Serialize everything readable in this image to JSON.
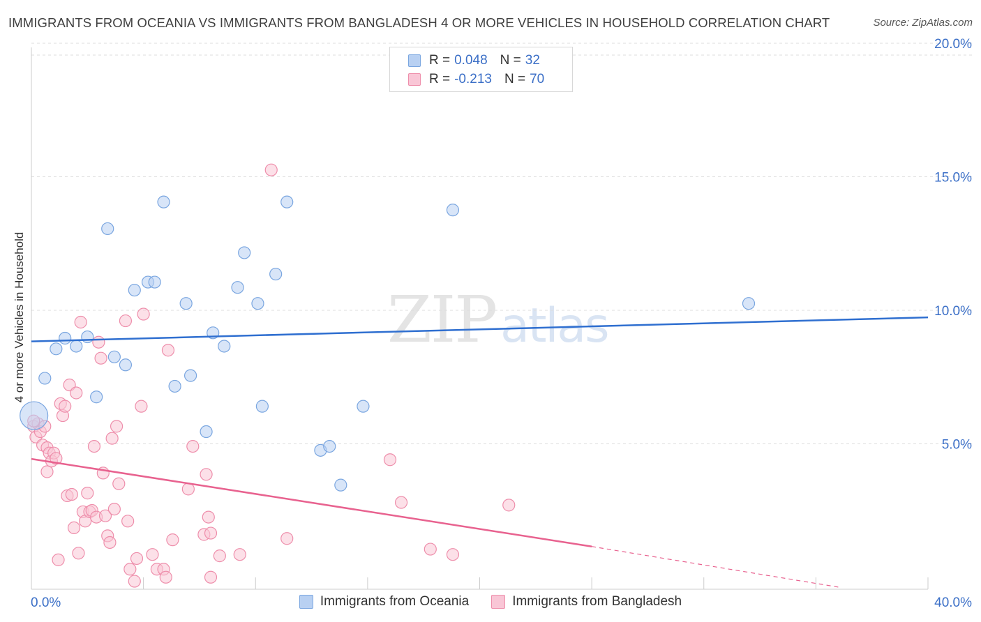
{
  "title": "IMMIGRANTS FROM OCEANIA VS IMMIGRANTS FROM BANGLADESH 4 OR MORE VEHICLES IN HOUSEHOLD CORRELATION CHART",
  "source": "Source: ZipAtlas.com",
  "watermark": {
    "zip": "ZIP",
    "atlas": "atlas"
  },
  "legend_top": [
    {
      "r_label": "R =",
      "r_value": "0.048",
      "n_label": "N =",
      "n_value": "32"
    },
    {
      "r_label": "R =",
      "r_value": "-0.213",
      "n_label": "N =",
      "n_value": "70"
    }
  ],
  "colors": {
    "oceania_fill": "#b8d0f2",
    "oceania_stroke": "#7aa6e0",
    "oceania_line": "#2f6fd0",
    "bangladesh_fill": "#f9c6d6",
    "bangladesh_stroke": "#ee8eab",
    "bangladesh_line": "#e8628f",
    "axis_text": "#3b6fc7",
    "grid": "#dddddd"
  },
  "chart_data": {
    "type": "scatter",
    "title": "IMMIGRANTS FROM OCEANIA VS IMMIGRANTS FROM BANGLADESH 4 OR MORE VEHICLES IN HOUSEHOLD CORRELATION CHART",
    "xlabel": "",
    "ylabel": "4 or more Vehicles in Household",
    "xlim": [
      0,
      40
    ],
    "ylim": [
      0,
      20
    ],
    "x_tick_labels": [
      "0.0%",
      "40.0%"
    ],
    "y_ticks": [
      5,
      10,
      15,
      20
    ],
    "y_tick_labels": [
      "5.0%",
      "10.0%",
      "15.0%",
      "20.0%"
    ],
    "grid": "horizontal dashed",
    "legend_position": "top-center",
    "series": [
      {
        "name": "Immigrants from Oceania",
        "r": 0.048,
        "n": 32,
        "trend": {
          "x": [
            0,
            40
          ],
          "y": [
            9.28,
            10.18
          ]
        },
        "points": [
          [
            0.3,
            6.5
          ],
          [
            0.6,
            7.9
          ],
          [
            1.1,
            9.0
          ],
          [
            1.5,
            9.4
          ],
          [
            2.0,
            9.1
          ],
          [
            2.5,
            9.45
          ],
          [
            2.9,
            7.2
          ],
          [
            3.4,
            13.5
          ],
          [
            3.7,
            8.7
          ],
          [
            4.2,
            8.4
          ],
          [
            4.6,
            11.2
          ],
          [
            5.2,
            11.5
          ],
          [
            5.5,
            11.5
          ],
          [
            5.9,
            14.5
          ],
          [
            6.4,
            7.6
          ],
          [
            6.9,
            10.7
          ],
          [
            7.1,
            8.0
          ],
          [
            7.8,
            5.9
          ],
          [
            8.1,
            9.6
          ],
          [
            8.6,
            9.1
          ],
          [
            9.2,
            11.3
          ],
          [
            9.5,
            12.6
          ],
          [
            10.1,
            10.7
          ],
          [
            10.3,
            6.85
          ],
          [
            10.9,
            11.8
          ],
          [
            11.4,
            14.5
          ],
          [
            12.9,
            5.2
          ],
          [
            13.3,
            5.35
          ],
          [
            13.8,
            3.9
          ],
          [
            14.8,
            6.85
          ],
          [
            18.8,
            14.2
          ],
          [
            32.0,
            10.7
          ]
        ]
      },
      {
        "name": "Immigrants from Bangladesh",
        "r": -0.213,
        "n": 70,
        "trend": {
          "x": [
            0,
            25
          ],
          "y": [
            4.88,
            1.6
          ]
        },
        "trend_dashed": {
          "x": [
            25,
            36
          ],
          "y": [
            1.6,
            0.08
          ]
        },
        "points": [
          [
            0.1,
            6.1
          ],
          [
            0.2,
            5.7
          ],
          [
            0.3,
            6.2
          ],
          [
            0.4,
            5.9
          ],
          [
            0.5,
            5.4
          ],
          [
            0.6,
            6.1
          ],
          [
            0.7,
            5.3
          ],
          [
            0.7,
            4.4
          ],
          [
            0.8,
            5.1
          ],
          [
            0.9,
            4.8
          ],
          [
            1.0,
            5.1
          ],
          [
            1.1,
            4.9
          ],
          [
            1.2,
            1.1
          ],
          [
            1.3,
            6.95
          ],
          [
            1.4,
            6.5
          ],
          [
            1.5,
            6.85
          ],
          [
            1.6,
            3.5
          ],
          [
            1.7,
            7.65
          ],
          [
            1.8,
            3.55
          ],
          [
            1.9,
            2.3
          ],
          [
            2.0,
            7.35
          ],
          [
            2.1,
            1.35
          ],
          [
            2.2,
            10.0
          ],
          [
            2.3,
            2.9
          ],
          [
            2.4,
            2.55
          ],
          [
            2.5,
            3.6
          ],
          [
            2.6,
            2.9
          ],
          [
            2.7,
            2.95
          ],
          [
            2.8,
            5.35
          ],
          [
            2.9,
            2.7
          ],
          [
            3.0,
            9.25
          ],
          [
            3.1,
            8.65
          ],
          [
            3.2,
            4.35
          ],
          [
            3.3,
            2.75
          ],
          [
            3.4,
            2.0
          ],
          [
            3.5,
            1.75
          ],
          [
            3.6,
            5.65
          ],
          [
            3.7,
            3.0
          ],
          [
            3.8,
            6.1
          ],
          [
            3.9,
            3.95
          ],
          [
            4.2,
            10.05
          ],
          [
            4.3,
            2.55
          ],
          [
            4.4,
            0.75
          ],
          [
            4.6,
            0.3
          ],
          [
            4.7,
            1.15
          ],
          [
            4.9,
            6.85
          ],
          [
            5.0,
            10.3
          ],
          [
            5.4,
            1.3
          ],
          [
            5.6,
            0.75
          ],
          [
            5.9,
            0.75
          ],
          [
            6.0,
            0.45
          ],
          [
            6.1,
            8.95
          ],
          [
            6.3,
            1.85
          ],
          [
            7.0,
            3.75
          ],
          [
            7.2,
            5.35
          ],
          [
            7.7,
            2.05
          ],
          [
            7.8,
            4.3
          ],
          [
            7.9,
            2.7
          ],
          [
            8.0,
            2.1
          ],
          [
            8.0,
            0.45
          ],
          [
            8.4,
            1.25
          ],
          [
            9.3,
            1.3
          ],
          [
            10.7,
            15.7
          ],
          [
            11.4,
            1.9
          ],
          [
            16.0,
            4.85
          ],
          [
            16.5,
            3.25
          ],
          [
            17.8,
            1.5
          ],
          [
            18.8,
            1.3
          ],
          [
            21.3,
            3.15
          ],
          [
            0.1,
            6.3
          ]
        ]
      }
    ]
  },
  "legend_bottom": [
    {
      "label": "Immigrants from Oceania"
    },
    {
      "label": "Immigrants from Bangladesh"
    }
  ]
}
